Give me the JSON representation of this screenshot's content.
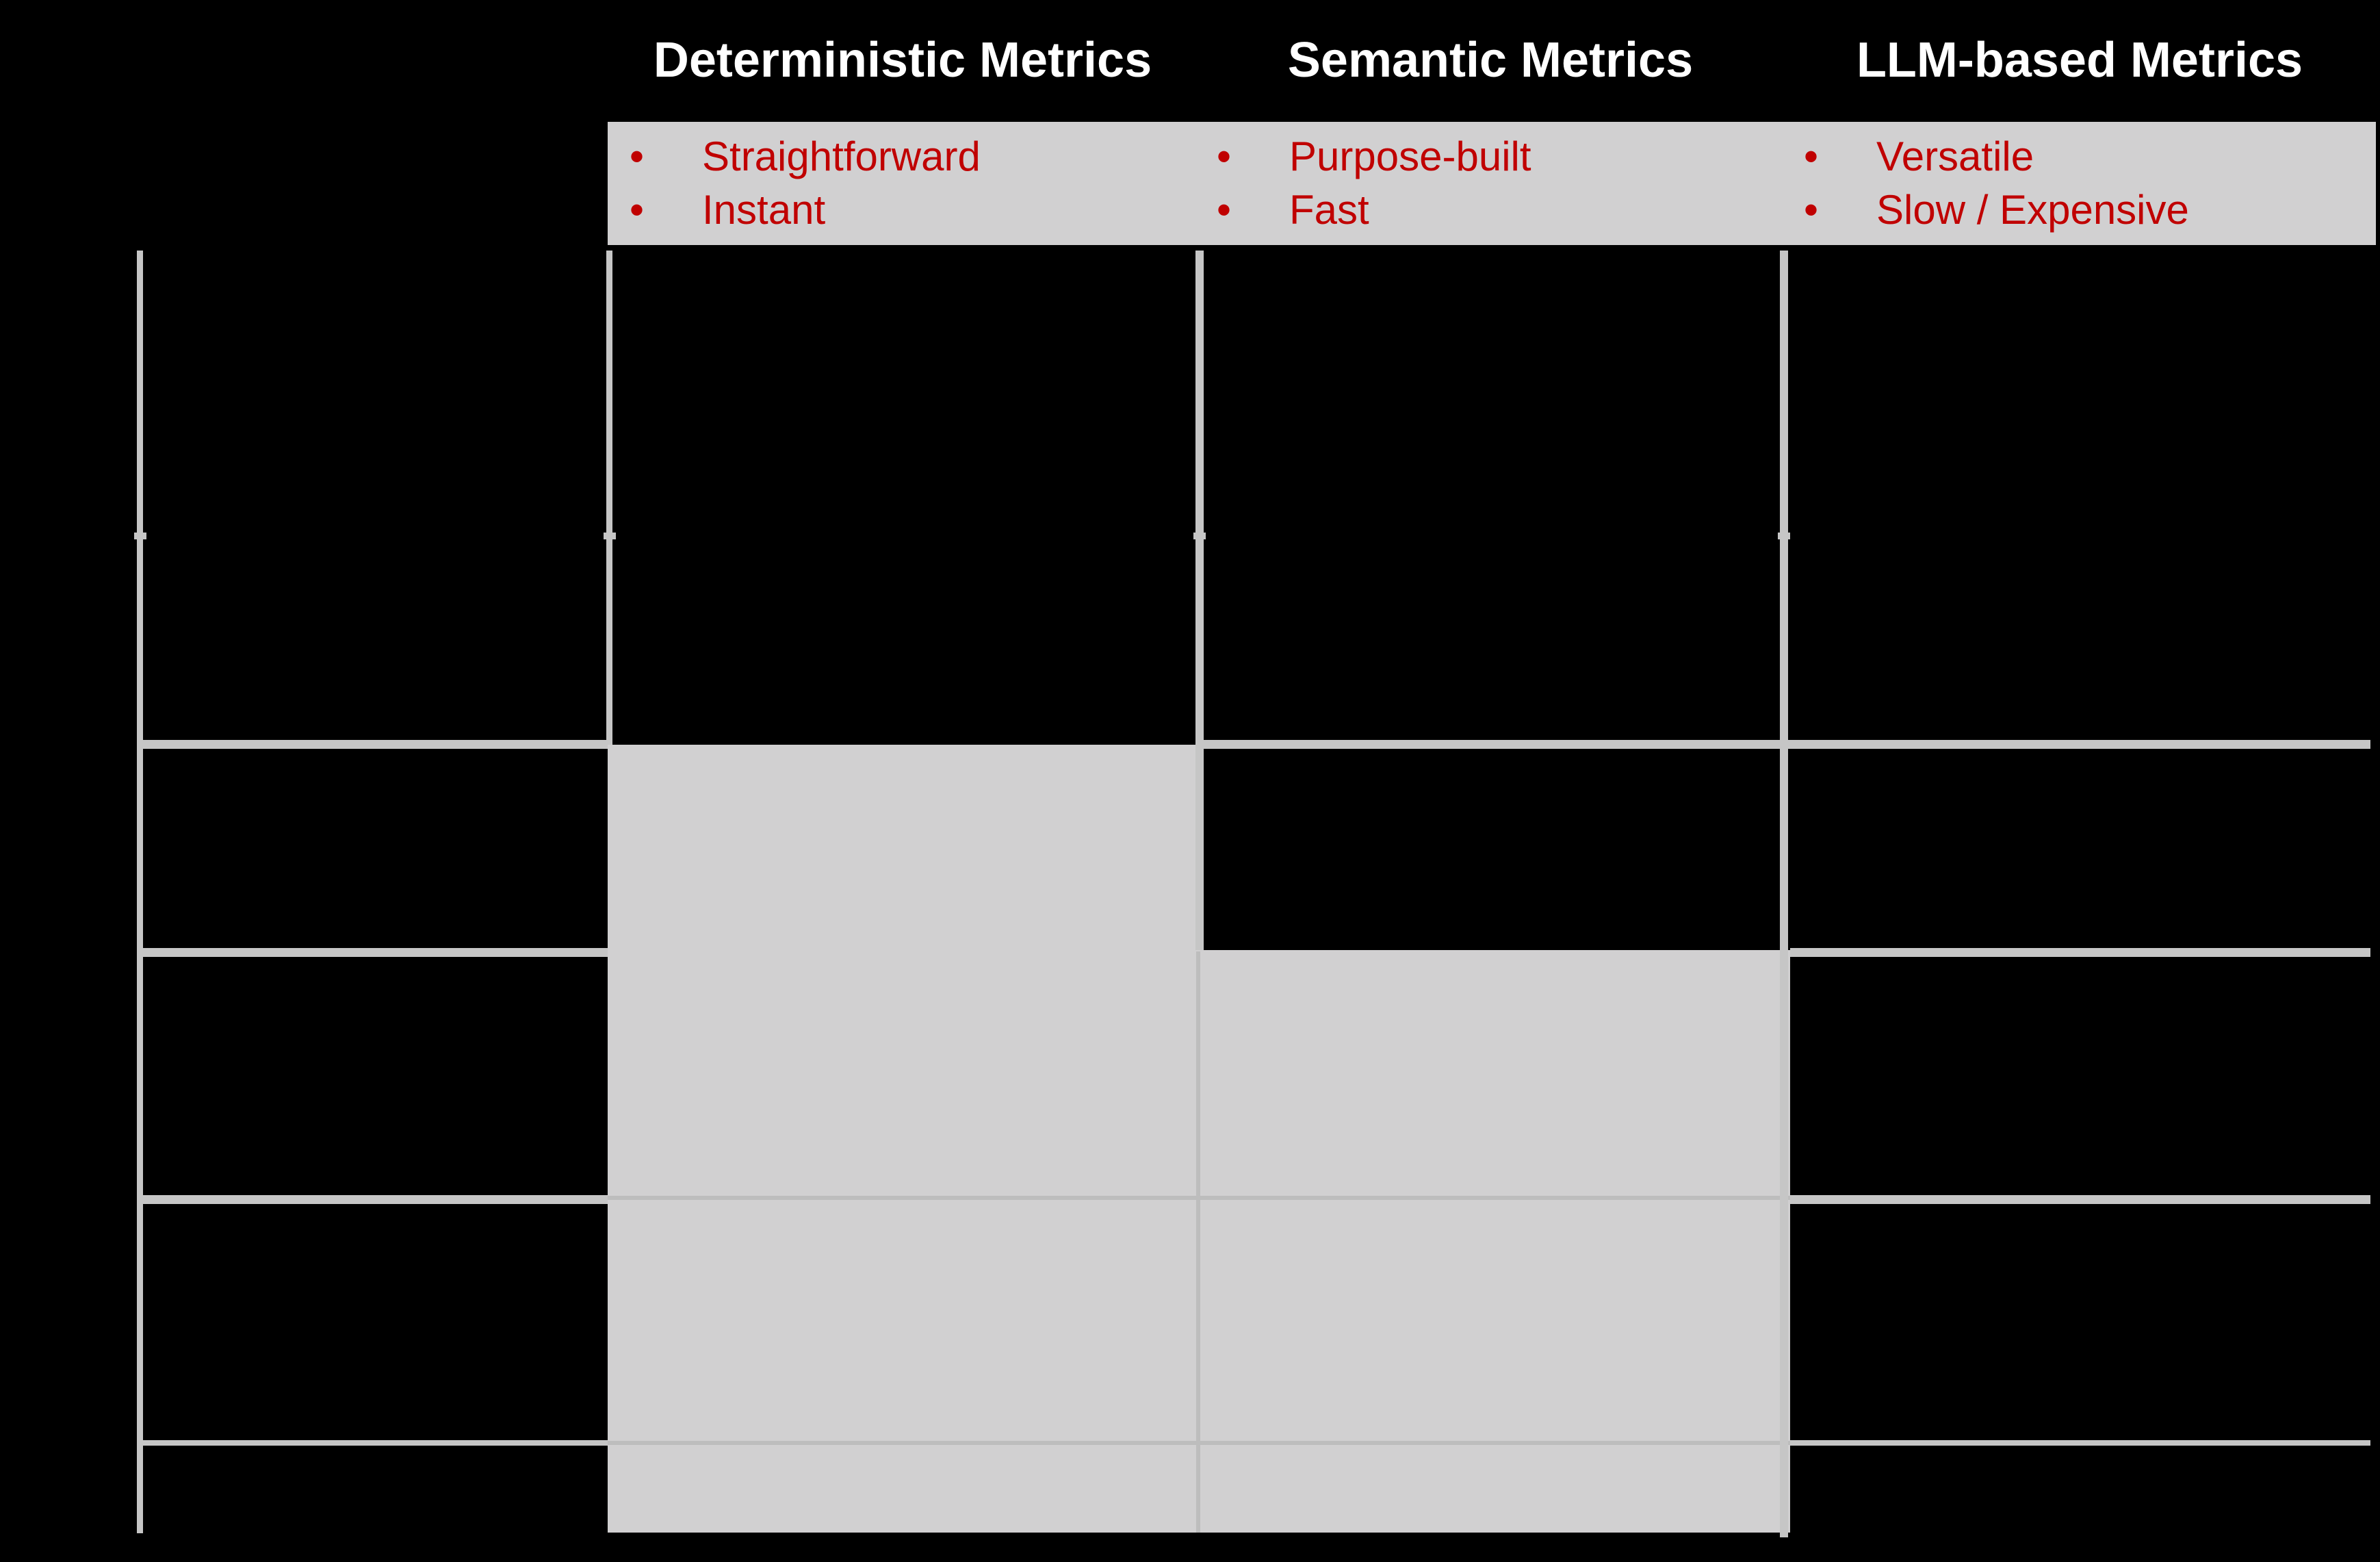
{
  "columns": [
    {
      "title": "Deterministic Metrics",
      "bullets": [
        "Straightforward",
        "Instant"
      ]
    },
    {
      "title": "Semantic Metrics",
      "bullets": [
        "Purpose-built",
        "Fast"
      ]
    },
    {
      "title": "LLM-based Metrics",
      "bullets": [
        "Versatile",
        "Slow / Expensive"
      ]
    }
  ],
  "colors": {
    "background": "#000000",
    "cell_fill": "#d1d0d1",
    "grid_line": "#c6c6c6",
    "bullet_text": "#c00000",
    "title_text": "#ffffff"
  }
}
